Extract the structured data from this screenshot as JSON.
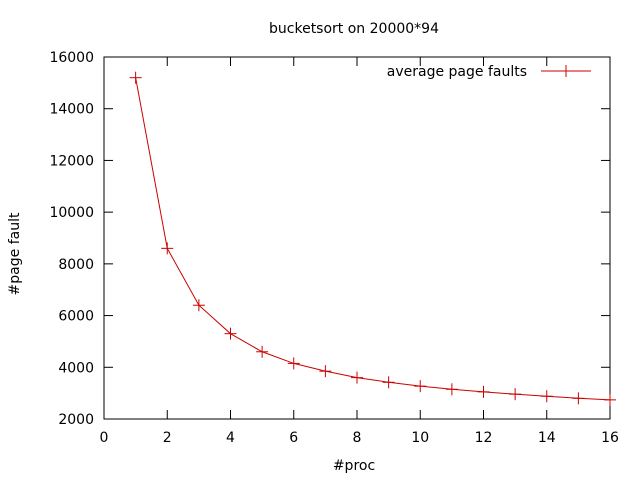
{
  "chart_data": {
    "type": "line",
    "title": "bucketsort on 20000*94",
    "xlabel": "#proc",
    "ylabel": "#page fault",
    "xlim": [
      0,
      16
    ],
    "ylim": [
      2000,
      16000
    ],
    "xticks": [
      0,
      2,
      4,
      6,
      8,
      10,
      12,
      14,
      16
    ],
    "yticks": [
      2000,
      4000,
      6000,
      8000,
      10000,
      12000,
      14000,
      16000
    ],
    "grid": false,
    "legend_position": "top-right",
    "series": [
      {
        "name": "average page faults",
        "color": "#cc0000",
        "marker": "plus",
        "x": [
          1,
          2,
          3,
          4,
          5,
          6,
          7,
          8,
          9,
          10,
          11,
          12,
          13,
          14,
          15,
          16
        ],
        "y": [
          15200,
          8600,
          6400,
          5300,
          4600,
          4150,
          3850,
          3600,
          3420,
          3270,
          3150,
          3050,
          2960,
          2880,
          2800,
          2740
        ]
      }
    ]
  }
}
